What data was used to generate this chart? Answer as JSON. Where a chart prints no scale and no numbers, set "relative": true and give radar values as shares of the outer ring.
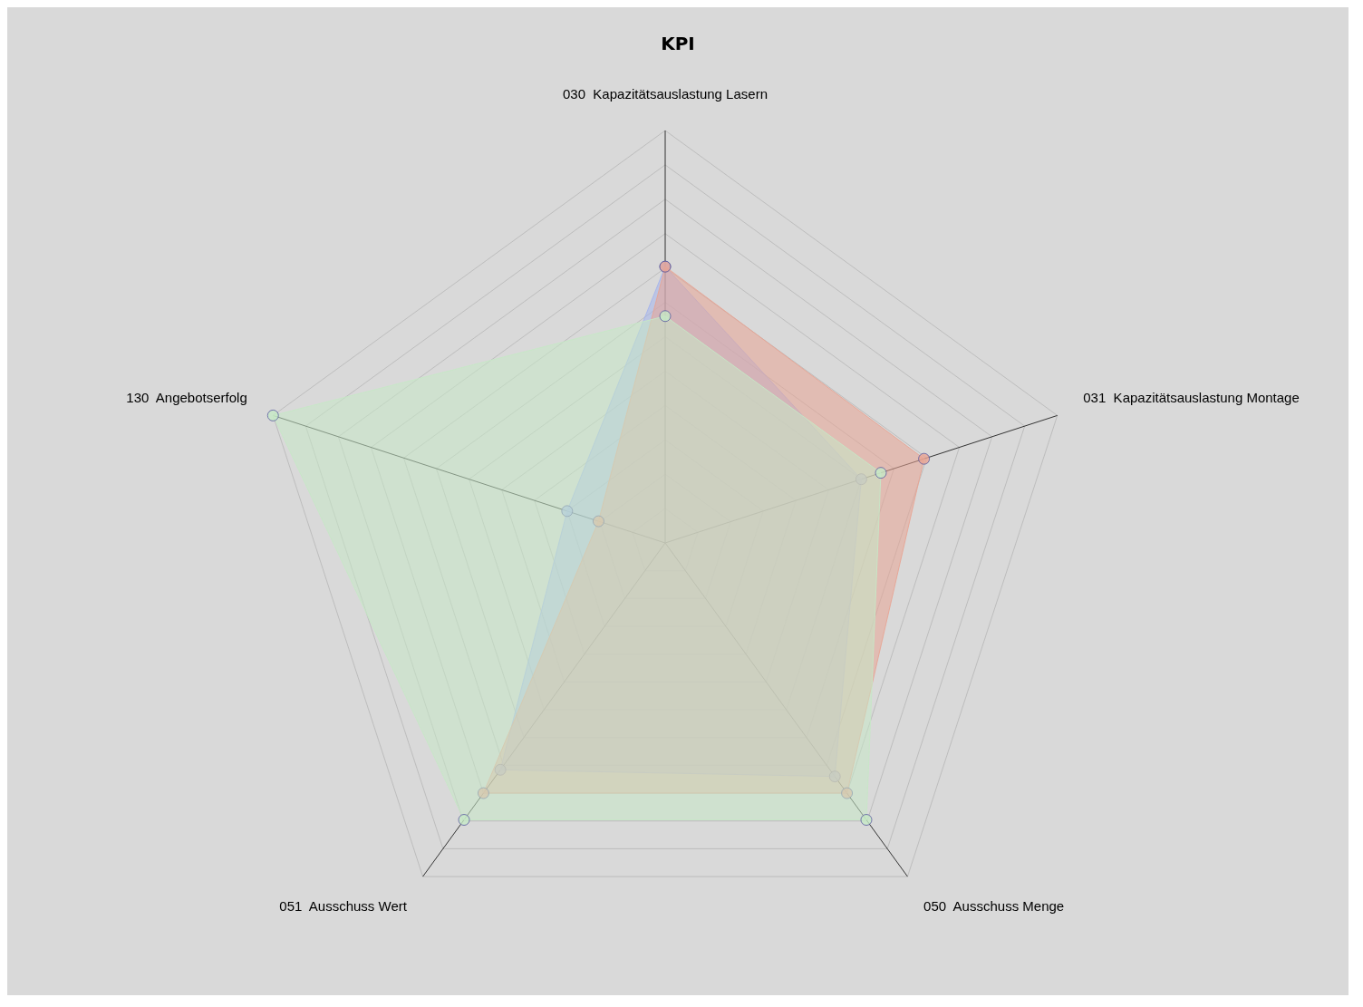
{
  "chart_data": {
    "type": "radar",
    "title": "KPI",
    "relative": true,
    "grid": true,
    "marker": "circle",
    "legend": false,
    "categories": [
      "030  Kapazitätsauslastung Lasern",
      "031  Kapazitätsauslastung Montage",
      "050  Ausschuss Menge",
      "051  Ausschuss Wert",
      "130  Angebotserfolg"
    ],
    "series": [
      {
        "color": "#c6e8c6",
        "values": [
          0.55,
          0.55,
          0.83,
          0.83,
          1.0
        ]
      },
      {
        "color": "#e8a494",
        "values": [
          0.67,
          0.66,
          0.75,
          0.75,
          0.17
        ]
      },
      {
        "color": "#a4b4ec",
        "values": [
          0.67,
          0.5,
          0.7,
          0.68,
          0.25
        ]
      }
    ]
  }
}
